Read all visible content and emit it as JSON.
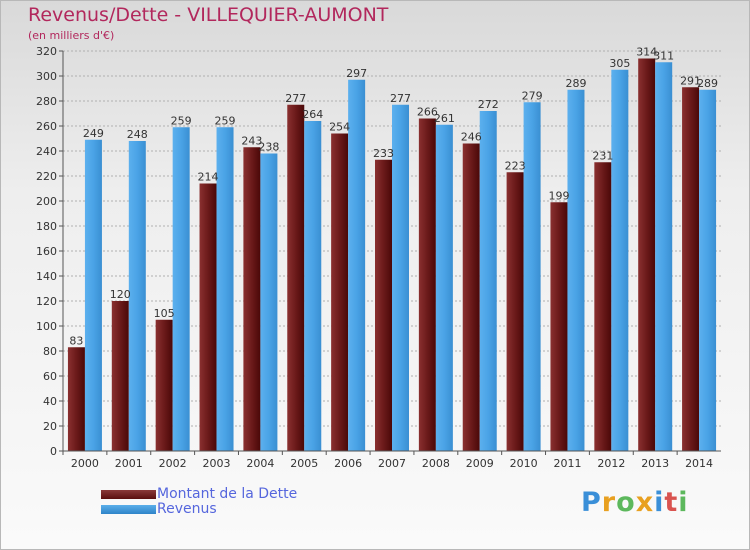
{
  "header": {
    "title": "Revenus/Dette - VILLEQUIER-AUMONT",
    "subtitle": "(en milliers d'€)"
  },
  "legend": {
    "debt_label": "Montant de la Dette",
    "revenue_label": "Revenus"
  },
  "logo": {
    "text": "Proxiti",
    "letters": [
      "P",
      "r",
      "o",
      "x",
      "i",
      "t",
      "i"
    ],
    "colors": [
      "#3a8fd8",
      "#e8a020",
      "#5cb85c",
      "#e8a020",
      "#3a8fd8",
      "#d9534f",
      "#5cb85c"
    ]
  },
  "colors": {
    "debt": "#6b1a1a",
    "revenue": "#4aa3e6",
    "title": "#b2275c",
    "legend_text": "#5566dd",
    "grid": "#b0b0b0"
  },
  "chart_data": {
    "type": "bar",
    "title": "Revenus/Dette - VILLEQUIER-AUMONT",
    "subtitle": "(en milliers d'€)",
    "xlabel": "",
    "ylabel": "",
    "categories": [
      "2000",
      "2001",
      "2002",
      "2003",
      "2004",
      "2005",
      "2006",
      "2007",
      "2008",
      "2009",
      "2010",
      "2011",
      "2012",
      "2013",
      "2014"
    ],
    "series": [
      {
        "name": "Montant de la Dette",
        "values": [
          83,
          120,
          105,
          214,
          243,
          277,
          254,
          233,
          266,
          246,
          223,
          199,
          231,
          314,
          291
        ]
      },
      {
        "name": "Revenus",
        "values": [
          249,
          248,
          259,
          259,
          238,
          264,
          297,
          277,
          261,
          272,
          279,
          289,
          305,
          311,
          289
        ]
      }
    ],
    "ylim": [
      0,
      320
    ],
    "yticks": [
      0,
      20,
      40,
      60,
      80,
      100,
      120,
      140,
      160,
      180,
      200,
      220,
      240,
      260,
      280,
      300,
      320
    ],
    "grid": true,
    "legend_position": "bottom-left"
  }
}
